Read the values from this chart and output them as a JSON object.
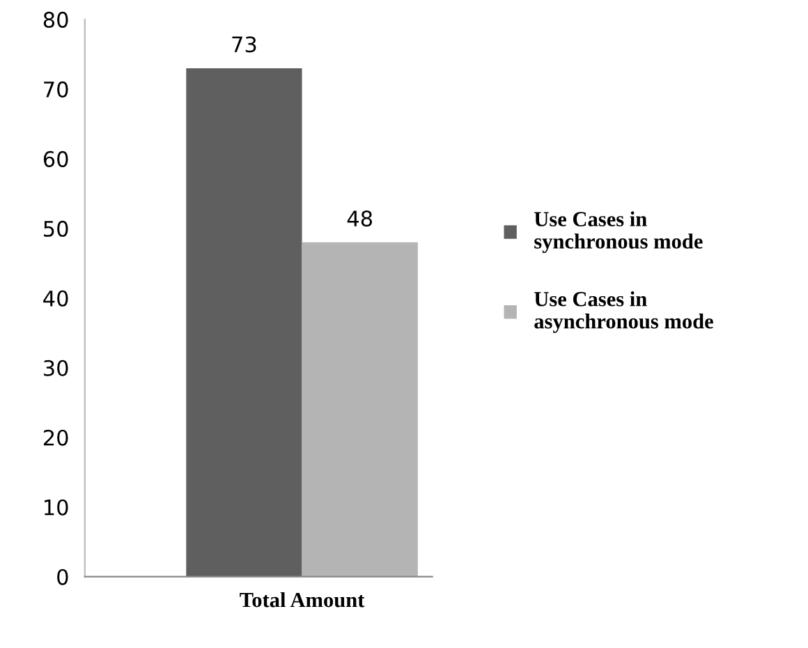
{
  "chart_data": {
    "type": "bar",
    "categories": [
      "Total Amount"
    ],
    "series": [
      {
        "name": "Use Cases in\nsynchronous mode",
        "color": "#5f5f5f",
        "values": [
          73
        ]
      },
      {
        "name": "Use Cases in\nasynchronous mode",
        "color": "#b4b4b4",
        "values": [
          48
        ]
      }
    ],
    "ylim": [
      0,
      80
    ],
    "yticks": [
      0,
      10,
      20,
      30,
      40,
      50,
      60,
      70,
      80
    ],
    "data_labels": true,
    "grid": false,
    "legend": "right"
  }
}
